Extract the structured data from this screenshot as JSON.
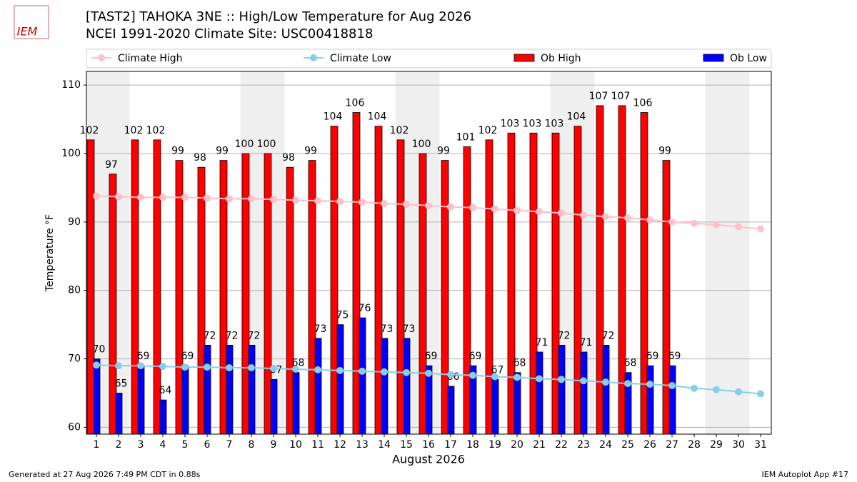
{
  "logo_text": "IEM",
  "footer_left": "Generated at 27 Aug 2026 7:49 PM CDT in 0.88s",
  "footer_right": "IEM Autoplot App #17",
  "chart_data": {
    "type": "bar",
    "title": "[TAST2] TAHOKA 3NE :: High/Low Temperature for Aug 2026",
    "subtitle": "NCEI 1991-2020 Climate Site: USC00418818",
    "xlabel": "August 2026",
    "ylabel": "Temperature °F",
    "categories": [
      1,
      2,
      3,
      4,
      5,
      6,
      7,
      8,
      9,
      10,
      11,
      12,
      13,
      14,
      15,
      16,
      17,
      18,
      19,
      20,
      21,
      22,
      23,
      24,
      25,
      26,
      27,
      28,
      29,
      30,
      31
    ],
    "highlight_days": [
      1,
      2,
      8,
      9,
      15,
      16,
      22,
      23,
      29,
      30
    ],
    "ylim": [
      59,
      112
    ],
    "yticks": [
      60,
      70,
      80,
      90,
      100,
      110
    ],
    "grid": true,
    "series": [
      {
        "name": "Climate High",
        "kind": "line",
        "color": "#ffc0cb",
        "values": [
          93.8,
          93.7,
          93.6,
          93.6,
          93.6,
          93.5,
          93.4,
          93.4,
          93.3,
          93.2,
          93.1,
          93.0,
          92.9,
          92.7,
          92.6,
          92.4,
          92.2,
          92.1,
          91.9,
          91.7,
          91.5,
          91.3,
          91.0,
          90.8,
          90.6,
          90.3,
          90.0,
          89.8,
          89.6,
          89.3,
          89.0
        ]
      },
      {
        "name": "Climate Low",
        "kind": "line",
        "color": "#87ceeb",
        "values": [
          69.1,
          69.0,
          69.0,
          68.9,
          68.8,
          68.8,
          68.7,
          68.7,
          68.6,
          68.5,
          68.4,
          68.3,
          68.2,
          68.1,
          68.0,
          67.9,
          67.7,
          67.6,
          67.4,
          67.3,
          67.1,
          67.0,
          66.8,
          66.6,
          66.4,
          66.3,
          66.1,
          65.7,
          65.5,
          65.2,
          64.9
        ]
      },
      {
        "name": "Ob High",
        "kind": "bar",
        "color": "#ff0000",
        "values": [
          102,
          97,
          102,
          102,
          99,
          98,
          99,
          100,
          100,
          98,
          99,
          104,
          106,
          104,
          102,
          100,
          99,
          101,
          102,
          103,
          103,
          103,
          104,
          107,
          107,
          106,
          99,
          null,
          null,
          null,
          null
        ]
      },
      {
        "name": "Ob Low",
        "kind": "bar",
        "color": "#0000ff",
        "values": [
          70,
          65,
          69,
          64,
          69,
          72,
          72,
          72,
          67,
          68,
          73,
          75,
          76,
          73,
          73,
          69,
          66,
          69,
          67,
          68,
          71,
          72,
          71,
          72,
          68,
          69,
          69,
          null,
          null,
          null,
          null
        ]
      }
    ]
  }
}
